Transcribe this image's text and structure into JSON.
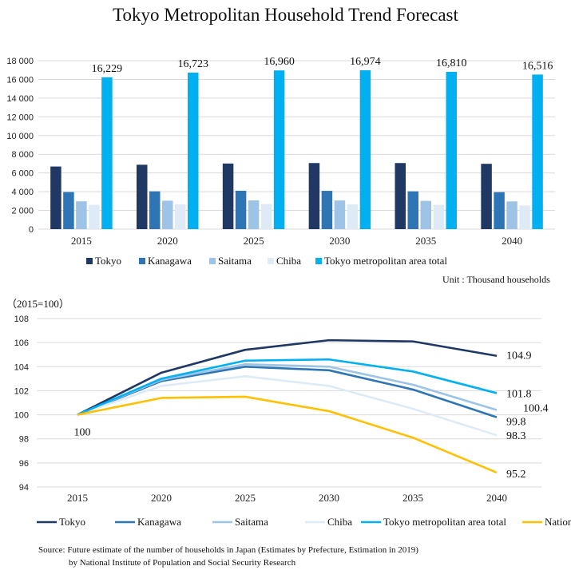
{
  "title": "Tokyo Metropolitan Household Trend Forecast",
  "unit_note": "Unit : Thousand households",
  "index_note": "（2015=100）",
  "source_line1": "Source: Future estimate of the number of households in Japan (Estimates by Prefecture, Estimation in 2019)",
  "source_line2": "by National Institute of Population and Social Security Research",
  "colors": {
    "Tokyo": "#1f3864",
    "Kanagawa": "#2e75b6",
    "Saitama": "#9dc3e6",
    "Chiba": "#deebf7",
    "Tokyo metropolitan area total": "#00b0f0",
    "Nationwide": "#ffc000"
  },
  "chart_data": [
    {
      "type": "bar",
      "categories": [
        "2015",
        "2020",
        "2025",
        "2030",
        "2035",
        "2040"
      ],
      "ylim": [
        0,
        18000
      ],
      "yticks": [
        "0",
        "2 000",
        "4 000",
        "6 000",
        "8 000",
        "10 000",
        "12 000",
        "14 000",
        "16 000",
        "18 000"
      ],
      "legend_position": "bottom",
      "grid": true,
      "series": [
        {
          "name": "Tokyo",
          "values": [
            6690,
            6880,
            7010,
            7060,
            7060,
            6980
          ]
        },
        {
          "name": "Kanagawa",
          "values": [
            3960,
            4040,
            4100,
            4090,
            4040,
            3950
          ]
        },
        {
          "name": "Saitama",
          "values": [
            2970,
            3040,
            3070,
            3060,
            3020,
            2960
          ]
        },
        {
          "name": "Chiba",
          "values": [
            2600,
            2650,
            2680,
            2650,
            2600,
            2530
          ]
        },
        {
          "name": "Tokyo metropolitan area total",
          "values": [
            16229,
            16723,
            16960,
            16974,
            16810,
            16516
          ],
          "labels": [
            "16,229",
            "16,723",
            "16,960",
            "16,974",
            "16,810",
            "16,516"
          ]
        }
      ]
    },
    {
      "type": "line",
      "x": [
        "2015",
        "2020",
        "2025",
        "2030",
        "2035",
        "2040"
      ],
      "ylim": [
        94,
        108
      ],
      "yticks": [
        "94",
        "96",
        "98",
        "100",
        "102",
        "104",
        "106",
        "108"
      ],
      "legend_position": "bottom",
      "grid": true,
      "start_label": "100",
      "series": [
        {
          "name": "Tokyo",
          "values": [
            100,
            103.5,
            105.4,
            106.2,
            106.1,
            104.9
          ],
          "end_label": "104.9"
        },
        {
          "name": "Kanagawa",
          "values": [
            100,
            102.8,
            104.0,
            103.7,
            102.1,
            99.8
          ],
          "end_label": "99.8"
        },
        {
          "name": "Saitama",
          "values": [
            100,
            102.9,
            104.2,
            104.0,
            102.5,
            100.4
          ],
          "end_label": "100.4"
        },
        {
          "name": "Chiba",
          "values": [
            100,
            102.4,
            103.2,
            102.4,
            100.5,
            98.3
          ],
          "end_label": "98.3"
        },
        {
          "name": "Tokyo metropolitan area total",
          "values": [
            100,
            103.0,
            104.5,
            104.6,
            103.6,
            101.8
          ],
          "end_label": "101.8"
        },
        {
          "name": "Nationwide",
          "values": [
            100,
            101.4,
            101.5,
            100.3,
            98.1,
            95.2
          ],
          "end_label": "95.2"
        }
      ]
    }
  ]
}
